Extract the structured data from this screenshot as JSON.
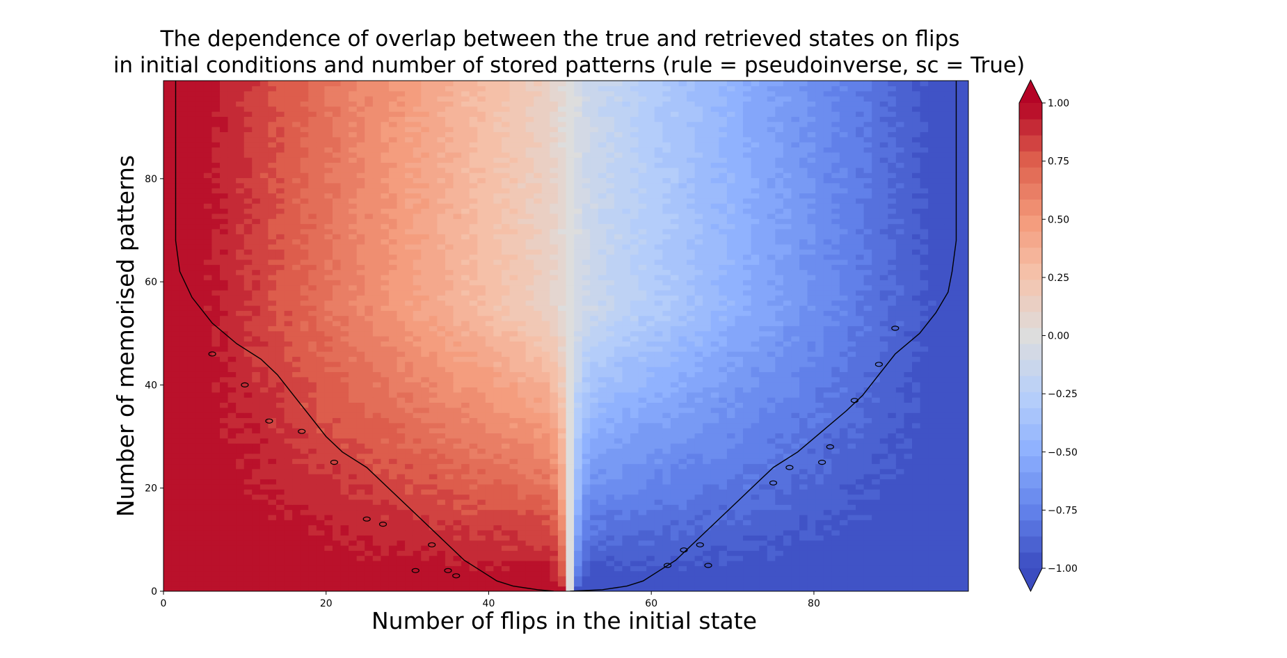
{
  "chart_data": {
    "type": "heatmap",
    "title_lines": [
      "The dependence of overlap between the true and retrieved states on flips",
      "in initial conditions and number of stored patterns (rule = pseudoinverse, sc = True)"
    ],
    "xlabel": "Number of flips in the initial state",
    "ylabel": "Number of memorised patterns",
    "xlim": [
      0,
      99
    ],
    "ylim": [
      0,
      99
    ],
    "x_ticks": [
      0,
      20,
      40,
      60,
      80
    ],
    "y_ticks": [
      0,
      20,
      40,
      60,
      80
    ],
    "x_tick_labels": [
      "0",
      "20",
      "40",
      "60",
      "80"
    ],
    "y_tick_labels": [
      "0",
      "20",
      "40",
      "60",
      "80"
    ],
    "colorbar": {
      "colormap": "coolwarm",
      "range": [
        -1.0,
        1.0
      ],
      "extend": "both",
      "levels": 29,
      "ticks": [
        1.0,
        0.75,
        0.5,
        0.25,
        0.0,
        -0.25,
        -0.5,
        -0.75,
        -1.0
      ],
      "tick_labels": [
        "1.00",
        "0.75",
        "0.50",
        "0.25",
        "0.00",
        "−0.25",
        "−0.50",
        "−0.75",
        "−1.00"
      ]
    },
    "colors": {
      "max": "#b40426",
      "high": "#f08a6c",
      "mid": "#dddddd",
      "low": "#a0c0f8",
      "min": "#3b4cc0",
      "contour": "#000000"
    },
    "z_description": "overlap = 1 - 2*flips/100 (approx.), saturating at ±1 for few stored patterns",
    "contour_level": 0.98,
    "contour_left": [
      [
        1.5,
        99
      ],
      [
        1.5,
        68
      ],
      [
        2,
        62
      ],
      [
        3.5,
        57
      ],
      [
        6,
        52
      ],
      [
        9,
        48
      ],
      [
        12,
        45
      ],
      [
        14,
        42
      ],
      [
        16,
        38
      ],
      [
        18,
        34
      ],
      [
        20,
        30
      ],
      [
        22,
        27
      ],
      [
        25,
        24
      ],
      [
        27,
        21
      ],
      [
        29,
        18
      ],
      [
        31,
        15
      ],
      [
        33,
        12
      ],
      [
        35,
        9
      ],
      [
        37,
        6
      ],
      [
        39,
        4
      ],
      [
        41,
        2
      ],
      [
        43,
        1
      ],
      [
        46,
        0.3
      ],
      [
        48,
        0
      ]
    ],
    "contour_right": [
      [
        50,
        0
      ],
      [
        54,
        0.3
      ],
      [
        57,
        1
      ],
      [
        59,
        2
      ],
      [
        61,
        4
      ],
      [
        63,
        6
      ],
      [
        65,
        9
      ],
      [
        67,
        12
      ],
      [
        69,
        15
      ],
      [
        71,
        18
      ],
      [
        73,
        21
      ],
      [
        75,
        24
      ],
      [
        78,
        27
      ],
      [
        81,
        31
      ],
      [
        84,
        35
      ],
      [
        86,
        38
      ],
      [
        88,
        42
      ],
      [
        90,
        46
      ],
      [
        93,
        50
      ],
      [
        95,
        54
      ],
      [
        96.5,
        58
      ],
      [
        97,
        62
      ],
      [
        97.5,
        68
      ],
      [
        97.5,
        99
      ]
    ],
    "contour_islands": [
      [
        6,
        46
      ],
      [
        10,
        40
      ],
      [
        13,
        33
      ],
      [
        17,
        31
      ],
      [
        21,
        25
      ],
      [
        25,
        14
      ],
      [
        27,
        13
      ],
      [
        31,
        4
      ],
      [
        33,
        9
      ],
      [
        35,
        4
      ],
      [
        36,
        3
      ],
      [
        62,
        5
      ],
      [
        64,
        8
      ],
      [
        66,
        9
      ],
      [
        67,
        5
      ],
      [
        75,
        21
      ],
      [
        77,
        24
      ],
      [
        81,
        25
      ],
      [
        82,
        28
      ],
      [
        85,
        37
      ],
      [
        88,
        44
      ],
      [
        90,
        51
      ]
    ]
  }
}
